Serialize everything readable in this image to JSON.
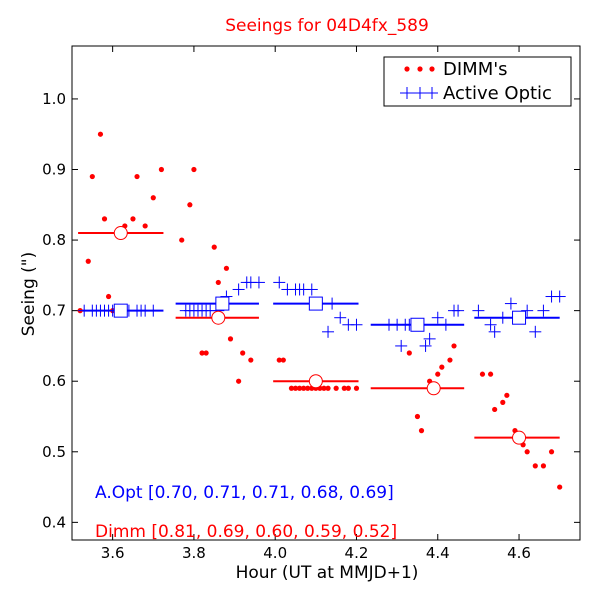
{
  "chart_data": {
    "type": "scatter",
    "title": "Seeings for 04D4fx_589",
    "xlabel": "Hour (UT at MMJD+1)",
    "ylabel": "Seeing (\")",
    "xlim": [
      3.5,
      4.75
    ],
    "ylim": [
      0.375,
      1.075
    ],
    "xticks": [
      3.6,
      3.8,
      4.0,
      4.2,
      4.4,
      4.6
    ],
    "xtick_labels": [
      "3.6",
      "3.8",
      "4.0",
      "4.2",
      "4.4",
      "4.6"
    ],
    "yticks": [
      0.4,
      0.5,
      0.6,
      0.7,
      0.8,
      0.9,
      1.0
    ],
    "ytick_labels": [
      "0.4",
      "0.5",
      "0.6",
      "0.7",
      "0.8",
      "0.9",
      "1.0"
    ],
    "grid": false,
    "legend": {
      "position": "top-right",
      "entries": [
        {
          "label": "DIMM's",
          "color": "#ff0000",
          "marker": "dots"
        },
        {
          "label": "Active Optic",
          "color": "#0000ff",
          "marker": "plus"
        }
      ]
    },
    "series": [
      {
        "name": "DIMM's",
        "color": "#ff0000",
        "marker": "dot",
        "points": [
          [
            3.52,
            0.7
          ],
          [
            3.54,
            0.77
          ],
          [
            3.55,
            0.89
          ],
          [
            3.57,
            0.95
          ],
          [
            3.58,
            0.83
          ],
          [
            3.59,
            0.72
          ],
          [
            3.6,
            0.7
          ],
          [
            3.62,
            0.81
          ],
          [
            3.63,
            0.82
          ],
          [
            3.65,
            0.83
          ],
          [
            3.66,
            0.89
          ],
          [
            3.68,
            0.82
          ],
          [
            3.7,
            0.86
          ],
          [
            3.72,
            0.9
          ],
          [
            3.77,
            0.8
          ],
          [
            3.79,
            0.85
          ],
          [
            3.8,
            0.9
          ],
          [
            3.82,
            0.64
          ],
          [
            3.83,
            0.64
          ],
          [
            3.85,
            0.79
          ],
          [
            3.86,
            0.74
          ],
          [
            3.88,
            0.76
          ],
          [
            3.89,
            0.66
          ],
          [
            3.91,
            0.6
          ],
          [
            3.92,
            0.64
          ],
          [
            3.94,
            0.63
          ],
          [
            4.01,
            0.63
          ],
          [
            4.02,
            0.63
          ],
          [
            4.04,
            0.59
          ],
          [
            4.05,
            0.59
          ],
          [
            4.06,
            0.59
          ],
          [
            4.07,
            0.59
          ],
          [
            4.08,
            0.59
          ],
          [
            4.09,
            0.59
          ],
          [
            4.1,
            0.59
          ],
          [
            4.11,
            0.59
          ],
          [
            4.12,
            0.59
          ],
          [
            4.13,
            0.59
          ],
          [
            4.15,
            0.59
          ],
          [
            4.17,
            0.59
          ],
          [
            4.18,
            0.59
          ],
          [
            4.2,
            0.59
          ],
          [
            4.33,
            0.64
          ],
          [
            4.35,
            0.55
          ],
          [
            4.36,
            0.53
          ],
          [
            4.38,
            0.6
          ],
          [
            4.4,
            0.61
          ],
          [
            4.41,
            0.62
          ],
          [
            4.43,
            0.63
          ],
          [
            4.44,
            0.65
          ],
          [
            4.51,
            0.61
          ],
          [
            4.53,
            0.61
          ],
          [
            4.54,
            0.56
          ],
          [
            4.56,
            0.57
          ],
          [
            4.57,
            0.58
          ],
          [
            4.59,
            0.53
          ],
          [
            4.6,
            0.52
          ],
          [
            4.61,
            0.51
          ],
          [
            4.62,
            0.5
          ],
          [
            4.64,
            0.48
          ],
          [
            4.66,
            0.48
          ],
          [
            4.68,
            0.5
          ],
          [
            4.7,
            0.45
          ]
        ]
      },
      {
        "name": "Active Optic",
        "color": "#0000ff",
        "marker": "plus",
        "points": [
          [
            3.53,
            0.7
          ],
          [
            3.55,
            0.7
          ],
          [
            3.56,
            0.7
          ],
          [
            3.57,
            0.7
          ],
          [
            3.58,
            0.7
          ],
          [
            3.59,
            0.7
          ],
          [
            3.6,
            0.7
          ],
          [
            3.61,
            0.7
          ],
          [
            3.62,
            0.7
          ],
          [
            3.64,
            0.7
          ],
          [
            3.66,
            0.7
          ],
          [
            3.67,
            0.7
          ],
          [
            3.68,
            0.7
          ],
          [
            3.7,
            0.7
          ],
          [
            3.78,
            0.7
          ],
          [
            3.79,
            0.7
          ],
          [
            3.8,
            0.7
          ],
          [
            3.81,
            0.7
          ],
          [
            3.82,
            0.7
          ],
          [
            3.83,
            0.7
          ],
          [
            3.84,
            0.7
          ],
          [
            3.86,
            0.7
          ],
          [
            3.88,
            0.72
          ],
          [
            3.91,
            0.73
          ],
          [
            3.93,
            0.74
          ],
          [
            3.94,
            0.74
          ],
          [
            3.96,
            0.74
          ],
          [
            4.01,
            0.74
          ],
          [
            4.03,
            0.73
          ],
          [
            4.05,
            0.73
          ],
          [
            4.06,
            0.73
          ],
          [
            4.07,
            0.73
          ],
          [
            4.09,
            0.73
          ],
          [
            4.13,
            0.67
          ],
          [
            4.14,
            0.71
          ],
          [
            4.16,
            0.69
          ],
          [
            4.18,
            0.68
          ],
          [
            4.2,
            0.68
          ],
          [
            4.28,
            0.68
          ],
          [
            4.3,
            0.68
          ],
          [
            4.31,
            0.65
          ],
          [
            4.32,
            0.68
          ],
          [
            4.33,
            0.68
          ],
          [
            4.34,
            0.68
          ],
          [
            4.35,
            0.68
          ],
          [
            4.37,
            0.65
          ],
          [
            4.38,
            0.66
          ],
          [
            4.4,
            0.69
          ],
          [
            4.42,
            0.68
          ],
          [
            4.44,
            0.7
          ],
          [
            4.45,
            0.7
          ],
          [
            4.5,
            0.7
          ],
          [
            4.53,
            0.68
          ],
          [
            4.54,
            0.67
          ],
          [
            4.56,
            0.69
          ],
          [
            4.58,
            0.71
          ],
          [
            4.6,
            0.69
          ],
          [
            4.62,
            0.7
          ],
          [
            4.64,
            0.67
          ],
          [
            4.66,
            0.7
          ],
          [
            4.68,
            0.72
          ],
          [
            4.7,
            0.72
          ]
        ]
      }
    ],
    "bins": {
      "dimm": [
        {
          "x_start": 3.515,
          "x_end": 3.725,
          "center": 3.62,
          "value": 0.81
        },
        {
          "x_start": 3.755,
          "x_end": 3.96,
          "center": 3.86,
          "value": 0.69
        },
        {
          "x_start": 3.995,
          "x_end": 4.205,
          "center": 4.1,
          "value": 0.6
        },
        {
          "x_start": 4.235,
          "x_end": 4.465,
          "center": 4.39,
          "value": 0.59
        },
        {
          "x_start": 4.49,
          "x_end": 4.7,
          "center": 4.6,
          "value": 0.52
        }
      ],
      "aopt": [
        {
          "x_start": 3.515,
          "x_end": 3.725,
          "center": 3.62,
          "value": 0.7
        },
        {
          "x_start": 3.755,
          "x_end": 3.96,
          "center": 3.87,
          "value": 0.71
        },
        {
          "x_start": 3.995,
          "x_end": 4.205,
          "center": 4.1,
          "value": 0.71
        },
        {
          "x_start": 4.235,
          "x_end": 4.465,
          "center": 4.35,
          "value": 0.68
        },
        {
          "x_start": 4.49,
          "x_end": 4.7,
          "center": 4.6,
          "value": 0.69
        }
      ]
    },
    "annotations": {
      "aopt_summary": "A.Opt [0.70, 0.71, 0.71, 0.68, 0.69]",
      "aopt_color": "#0000ff",
      "dimm_summary": "Dimm [0.81, 0.69, 0.60, 0.59, 0.52]",
      "dimm_color": "#ff0000"
    },
    "title_color": "#ff0000"
  }
}
